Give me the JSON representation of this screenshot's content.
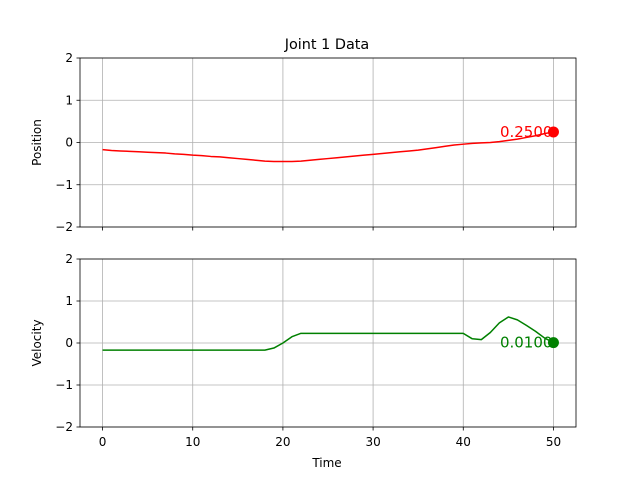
{
  "chart_data": [
    {
      "type": "line",
      "title": "Joint 1 Data",
      "xlabel": "",
      "ylabel": "Position",
      "xlim": [
        -2.5,
        52.5
      ],
      "ylim": [
        -2,
        2
      ],
      "xticks": [
        0,
        10,
        20,
        30,
        40,
        50
      ],
      "yticks": [
        -2,
        -1,
        0,
        1,
        2
      ],
      "grid": true,
      "x_ticklabels_visible": false,
      "color": "#ff0000",
      "annotation": "0.2500",
      "marker": {
        "x": 50,
        "y": 0.25
      },
      "series": [
        {
          "x": [
            0,
            1,
            2,
            3,
            4,
            5,
            6,
            7,
            8,
            9,
            10,
            11,
            12,
            13,
            14,
            15,
            16,
            17,
            18,
            19,
            20,
            21,
            22,
            23,
            24,
            25,
            26,
            27,
            28,
            29,
            30,
            31,
            32,
            33,
            34,
            35,
            36,
            37,
            38,
            39,
            40,
            41,
            42,
            43,
            44,
            45,
            46,
            47,
            48,
            49,
            50
          ],
          "values": [
            -0.17,
            -0.19,
            -0.2,
            -0.21,
            -0.22,
            -0.23,
            -0.24,
            -0.25,
            -0.27,
            -0.28,
            -0.3,
            -0.31,
            -0.33,
            -0.34,
            -0.36,
            -0.38,
            -0.4,
            -0.42,
            -0.44,
            -0.45,
            -0.45,
            -0.45,
            -0.44,
            -0.42,
            -0.4,
            -0.38,
            -0.36,
            -0.34,
            -0.32,
            -0.3,
            -0.28,
            -0.26,
            -0.24,
            -0.22,
            -0.2,
            -0.18,
            -0.15,
            -0.12,
            -0.09,
            -0.06,
            -0.04,
            -0.02,
            -0.01,
            0.0,
            0.02,
            0.05,
            0.08,
            0.12,
            0.16,
            0.21,
            0.25
          ]
        }
      ]
    },
    {
      "type": "line",
      "title": "",
      "xlabel": "Time",
      "ylabel": "Velocity",
      "xlim": [
        -2.5,
        52.5
      ],
      "ylim": [
        -2,
        2
      ],
      "xticks": [
        0,
        10,
        20,
        30,
        40,
        50
      ],
      "yticks": [
        -2,
        -1,
        0,
        1,
        2
      ],
      "grid": true,
      "x_ticklabels_visible": true,
      "color": "#008000",
      "annotation": "0.0100",
      "marker": {
        "x": 50,
        "y": 0.01
      },
      "series": [
        {
          "x": [
            0,
            18,
            19,
            20,
            21,
            22,
            40,
            41,
            42,
            43,
            44,
            45,
            46,
            47,
            48,
            49,
            50
          ],
          "values": [
            -0.17,
            -0.17,
            -0.12,
            0.0,
            0.15,
            0.23,
            0.23,
            0.1,
            0.08,
            0.25,
            0.48,
            0.62,
            0.55,
            0.42,
            0.28,
            0.12,
            0.01
          ]
        }
      ]
    }
  ]
}
